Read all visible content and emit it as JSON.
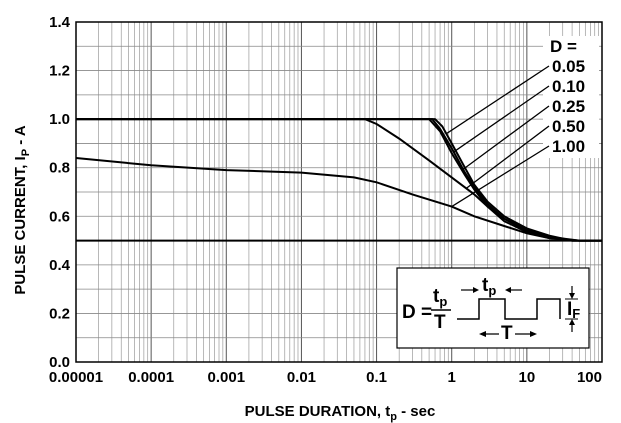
{
  "chart_data": {
    "type": "line",
    "xlabel": "PULSE DURATION, t",
    "xlabel_sub": "p",
    "xlabel_suffix": " - sec",
    "ylabel": "PULSE CURRENT, I",
    "ylabel_sub": "P",
    "ylabel_suffix": " - A",
    "x_scale": "log",
    "xlim": [
      1e-05,
      100
    ],
    "ylim": [
      0.0,
      1.4
    ],
    "x_ticks": [
      1e-05,
      0.0001,
      0.001,
      0.01,
      0.1,
      1,
      10,
      100
    ],
    "x_tick_labels": [
      "0.00001",
      "0.0001",
      "0.001",
      "0.01",
      "0.1",
      "1",
      "10",
      "100"
    ],
    "y_ticks": [
      0,
      0.2,
      0.4,
      0.6,
      0.8,
      1.0,
      1.2,
      1.4
    ],
    "y_tick_labels": [
      "0.0",
      "0.2",
      "0.4",
      "0.6",
      "0.8",
      "1.0",
      "1.2",
      "1.4"
    ],
    "grid": true,
    "legend_title": "D =",
    "series": [
      {
        "name": "0.05",
        "x": [
          1e-05,
          0.6,
          0.75,
          1,
          1.5,
          2,
          3,
          5,
          10,
          20,
          40,
          100
        ],
        "y": [
          1.0,
          1.0,
          0.97,
          0.9,
          0.8,
          0.73,
          0.66,
          0.6,
          0.55,
          0.52,
          0.5,
          0.5
        ]
      },
      {
        "name": "0.10",
        "x": [
          1e-05,
          0.55,
          0.7,
          1,
          1.5,
          2,
          3,
          5,
          10,
          20,
          40,
          100
        ],
        "y": [
          1.0,
          1.0,
          0.96,
          0.88,
          0.78,
          0.72,
          0.65,
          0.59,
          0.54,
          0.515,
          0.5,
          0.5
        ]
      },
      {
        "name": "0.25",
        "x": [
          1e-05,
          0.5,
          0.7,
          1,
          1.5,
          2,
          3,
          5,
          10,
          20,
          40,
          100
        ],
        "y": [
          1.0,
          1.0,
          0.95,
          0.86,
          0.77,
          0.71,
          0.64,
          0.58,
          0.535,
          0.51,
          0.5,
          0.5
        ]
      },
      {
        "name": "0.50",
        "x": [
          1e-05,
          0.07,
          0.1,
          0.2,
          0.5,
          1,
          2,
          3,
          5,
          10,
          20,
          50,
          100
        ],
        "y": [
          1.0,
          1.0,
          0.98,
          0.92,
          0.83,
          0.76,
          0.69,
          0.64,
          0.59,
          0.545,
          0.515,
          0.5,
          0.5
        ]
      },
      {
        "name": "1.00",
        "x": [
          1e-05,
          0.0001,
          0.001,
          0.01,
          0.05,
          0.1,
          0.3,
          1,
          2,
          5,
          10,
          20,
          50,
          100
        ],
        "y": [
          0.84,
          0.81,
          0.79,
          0.78,
          0.76,
          0.74,
          0.69,
          0.64,
          0.6,
          0.56,
          0.53,
          0.51,
          0.5,
          0.5
        ]
      },
      {
        "name": "",
        "x": [
          1e-05,
          100
        ],
        "y": [
          0.5,
          0.5
        ]
      }
    ],
    "inset": {
      "formula_left": "D =",
      "formula_num": "t",
      "formula_num_sub": "p",
      "formula_den": "T",
      "tp_label": "t",
      "tp_label_sub": "p",
      "period_label": "T",
      "current_label": "I",
      "current_label_sub": "F"
    }
  }
}
